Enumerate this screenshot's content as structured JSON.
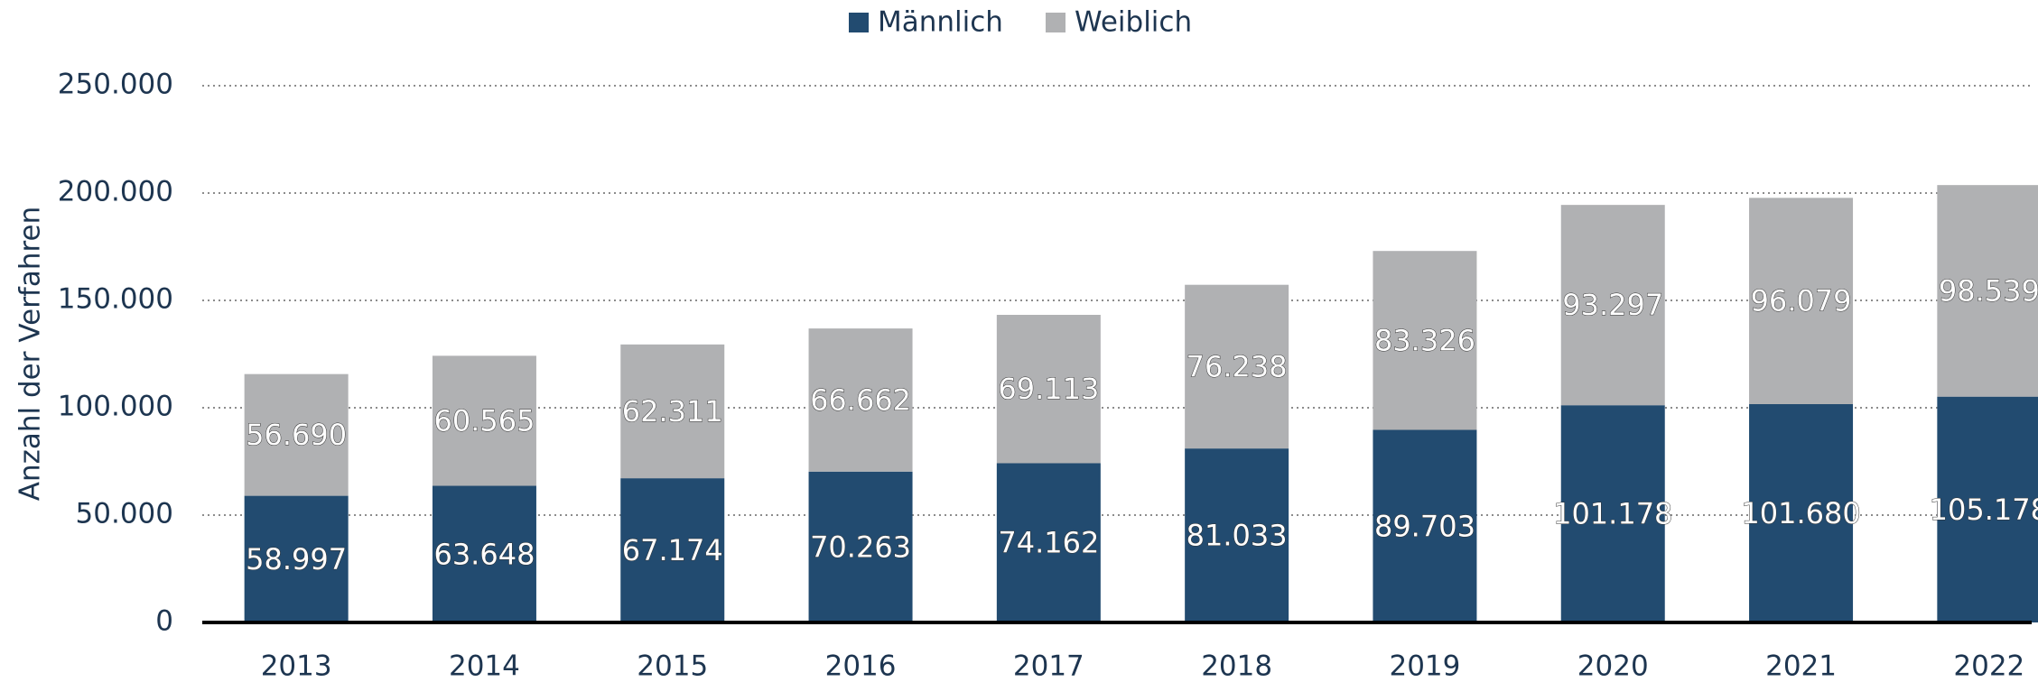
{
  "chart_data": {
    "type": "stacked_bar",
    "y_label": "Anzahl der Verfahren",
    "categories": [
      "2013",
      "2014",
      "2015",
      "2016",
      "2017",
      "2018",
      "2019",
      "2020",
      "2021",
      "2022"
    ],
    "series": [
      {
        "name": "Männlich",
        "color": "#224b70",
        "values": [
          58997,
          63648,
          67174,
          70263,
          74162,
          81033,
          89703,
          101178,
          101680,
          105178
        ],
        "value_labels": [
          "58.997",
          "63.648",
          "67.174",
          "70.263",
          "74.162",
          "81.033",
          "89.703",
          "101.178",
          "101.680",
          "105.178"
        ]
      },
      {
        "name": "Weiblich",
        "color": "#b0b1b3",
        "values": [
          56690,
          60565,
          62311,
          66662,
          69113,
          76238,
          83326,
          93297,
          96079,
          98539
        ],
        "value_labels": [
          "56.690",
          "60.565",
          "62.311",
          "66.662",
          "69.113",
          "76.238",
          "83.326",
          "93.297",
          "96.079",
          "98.539"
        ]
      }
    ],
    "ylim": [
      0,
      250000
    ],
    "yticks": [
      0,
      {
        "value": 50000,
        "label": "50.000"
      },
      {
        "value": 100000,
        "label": "100.000"
      },
      {
        "value": 150000,
        "label": "150.000"
      },
      {
        "value": 200000,
        "label": "200.000"
      },
      {
        "value": 250000,
        "label": "250.000"
      }
    ],
    "grid": true,
    "legend": "top"
  }
}
